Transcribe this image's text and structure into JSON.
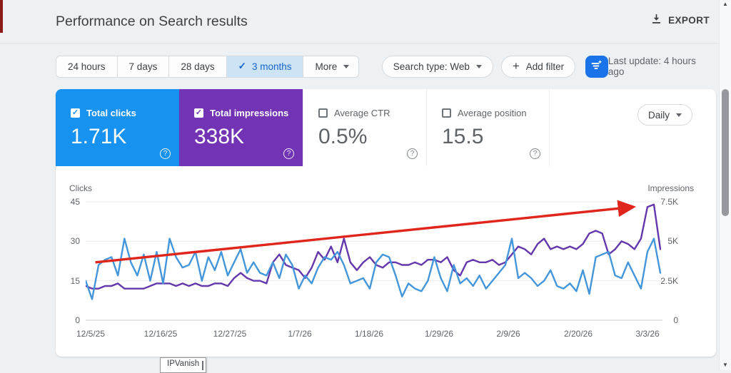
{
  "header": {
    "title": "Performance on Search results",
    "export_label": "EXPORT"
  },
  "toolbar": {
    "date_ranges": [
      {
        "label": "24 hours",
        "selected": false
      },
      {
        "label": "7 days",
        "selected": false
      },
      {
        "label": "28 days",
        "selected": false
      },
      {
        "label": "3 months",
        "selected": true
      },
      {
        "label": "More",
        "selected": false,
        "dropdown": true
      }
    ],
    "search_type_label": "Search type: Web",
    "add_filter_label": "Add filter",
    "last_update": "Last update: 4 hours ago"
  },
  "summary": {
    "granularity": "Daily",
    "cards": [
      {
        "label": "Total clicks",
        "value": "1.71K",
        "checked": true,
        "bg": "#1892f0"
      },
      {
        "label": "Total impressions",
        "value": "338K",
        "checked": true,
        "bg": "#7233b5"
      },
      {
        "label": "Average CTR",
        "value": "0.5%",
        "checked": false,
        "bg": "#ffffff"
      },
      {
        "label": "Average position",
        "value": "15.5",
        "checked": false,
        "bg": "#ffffff"
      }
    ]
  },
  "chart_data": {
    "type": "line",
    "title": "Clicks and Impressions over time (daily, 3 months)",
    "x_tick_labels": [
      "12/5/25",
      "12/16/25",
      "12/27/25",
      "1/7/26",
      "1/18/26",
      "1/29/26",
      "2/9/26",
      "2/20/26",
      "3/3/26"
    ],
    "left_axis": {
      "label": "Clicks",
      "ticks": [
        "45",
        "30",
        "15",
        "0"
      ],
      "max": 45
    },
    "right_axis": {
      "label": "Impressions",
      "ticks": [
        "7.5K",
        "5K",
        "2.5K",
        "0"
      ],
      "max": 7500
    },
    "grid": true,
    "legend": "none",
    "series": [
      {
        "name": "Clicks",
        "axis": "left",
        "color": "#4496db",
        "values": [
          15,
          8,
          21,
          23,
          24,
          17,
          31,
          22,
          17,
          25,
          15,
          26,
          14,
          31,
          24,
          20,
          21,
          26,
          15,
          24,
          19,
          26,
          17,
          22,
          27,
          18,
          22,
          18,
          17,
          22,
          16,
          25,
          21,
          12,
          17,
          14,
          20,
          24,
          23,
          26,
          21,
          14,
          15,
          16,
          12,
          22,
          25,
          24,
          17,
          9,
          14,
          12,
          11,
          15,
          24,
          16,
          11,
          21,
          14,
          16,
          13,
          17,
          12,
          15,
          18,
          21,
          31,
          16,
          18,
          16,
          13,
          15,
          19,
          13,
          12,
          14,
          11,
          19,
          10,
          24,
          25,
          26,
          17,
          16,
          22,
          17,
          12,
          26,
          31,
          18
        ]
      },
      {
        "name": "Impressions",
        "axis": "right",
        "color": "#6438ac",
        "values": [
          2170,
          2000,
          2000,
          2170,
          2170,
          2330,
          2000,
          2000,
          2000,
          2000,
          2170,
          2330,
          2330,
          2330,
          2170,
          2330,
          2170,
          2330,
          2170,
          2170,
          2330,
          2330,
          2170,
          2670,
          3000,
          2670,
          2500,
          2500,
          2330,
          3670,
          4170,
          3500,
          3330,
          3170,
          2670,
          3330,
          4330,
          3830,
          4670,
          3670,
          5170,
          3670,
          3170,
          3670,
          4000,
          3500,
          3330,
          3670,
          3670,
          3500,
          3500,
          3670,
          3500,
          3830,
          3830,
          3670,
          4000,
          3170,
          2830,
          3670,
          3830,
          3670,
          3670,
          3830,
          3500,
          3670,
          4170,
          4670,
          4500,
          4170,
          4830,
          5170,
          4500,
          4670,
          4500,
          4670,
          4500,
          4830,
          5500,
          5670,
          5500,
          4170,
          4500,
          5000,
          4830,
          4500,
          5170,
          7170,
          7330,
          4500
        ]
      }
    ],
    "annotation_arrow": {
      "color": "#e0261c",
      "from_index": 1.5,
      "from_clicks": 22,
      "to_index": 84.5,
      "to_clicks": 43
    }
  },
  "tooltip_label": "IPVanish",
  "colors": {
    "accent_blue": "#1a73e8",
    "selected_tab_bg": "#cde3f6",
    "selected_tab_text": "#1765cc",
    "clicks_card": "#1892f0",
    "impressions_card": "#7233b5",
    "clicks_line": "#4496db",
    "impressions_line": "#6438ac",
    "arrow_red": "#e0261c"
  }
}
